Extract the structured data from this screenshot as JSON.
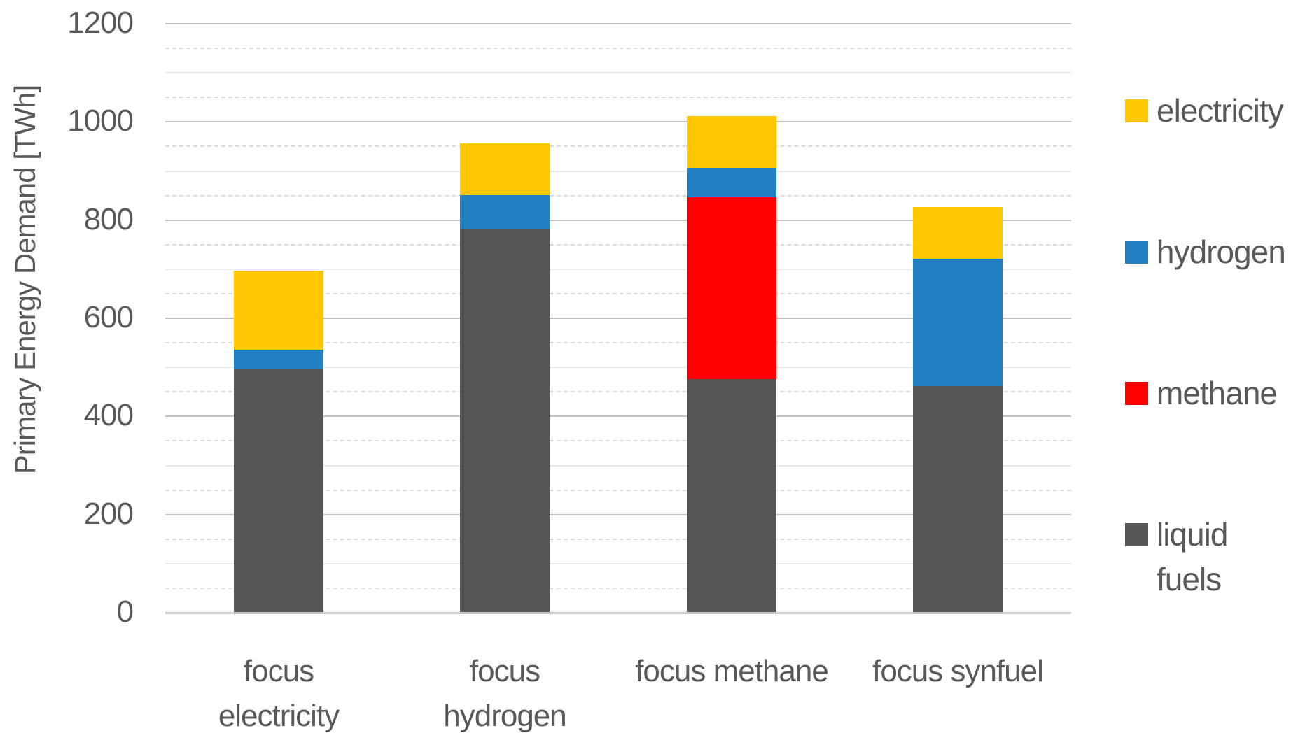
{
  "chart_data": {
    "type": "bar",
    "stacked": true,
    "title": "",
    "ylabel": "Primary Energy Demand [TWh]",
    "xlabel": "",
    "ylim": [
      0,
      1200
    ],
    "yticks": [
      0,
      200,
      400,
      600,
      800,
      1000,
      1200
    ],
    "minor_gridline_step": 50,
    "grid": true,
    "categories": [
      "focus electricity",
      "focus hydrogen",
      "focus methane",
      "focus synfuel"
    ],
    "xtick_labels": [
      "focus\nelectricity",
      "focus\nhydrogen",
      "focus methane",
      "focus synfuel"
    ],
    "series": [
      {
        "name": "liquid fuels",
        "color": "#555555",
        "values": [
          495,
          780,
          475,
          460
        ]
      },
      {
        "name": "methane",
        "color": "#fe0000",
        "values": [
          0,
          0,
          370,
          0
        ]
      },
      {
        "name": "hydrogen",
        "color": "#2280c2",
        "values": [
          40,
          70,
          60,
          260
        ]
      },
      {
        "name": "electricity",
        "color": "#ffc701",
        "values": [
          160,
          105,
          105,
          105
        ]
      }
    ],
    "legend": {
      "position": "right",
      "items": [
        {
          "label": "electricity",
          "color": "#ffc701"
        },
        {
          "label": "hydrogen",
          "color": "#2280c2"
        },
        {
          "label": "methane",
          "color": "#fe0000"
        },
        {
          "label": "liquid fuels",
          "color": "#555555"
        }
      ]
    }
  }
}
